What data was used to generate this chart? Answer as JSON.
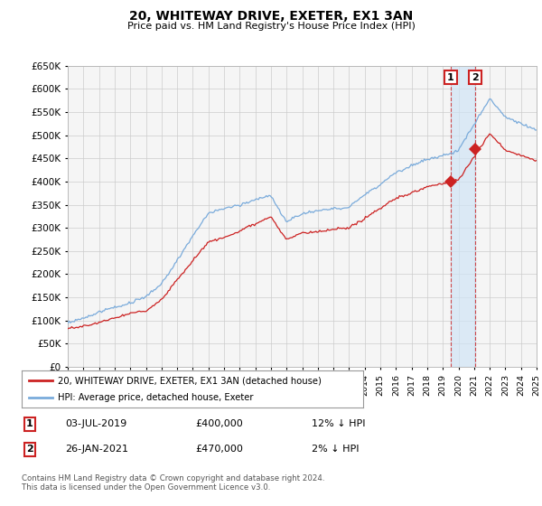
{
  "title": "20, WHITEWAY DRIVE, EXETER, EX1 3AN",
  "subtitle": "Price paid vs. HM Land Registry's House Price Index (HPI)",
  "ylabel_ticks": [
    "£0",
    "£50K",
    "£100K",
    "£150K",
    "£200K",
    "£250K",
    "£300K",
    "£350K",
    "£400K",
    "£450K",
    "£500K",
    "£550K",
    "£600K",
    "£650K"
  ],
  "ytick_values": [
    0,
    50000,
    100000,
    150000,
    200000,
    250000,
    300000,
    350000,
    400000,
    450000,
    500000,
    550000,
    600000,
    650000
  ],
  "xmin": 1995,
  "xmax": 2025,
  "ymin": 0,
  "ymax": 650000,
  "hpi_color": "#7aabdb",
  "price_color": "#cc2222",
  "grid_color": "#cccccc",
  "bg_color": "#f5f5f5",
  "sale1_date": 2019.5,
  "sale1_price": 400000,
  "sale2_date": 2021.07,
  "sale2_price": 470000,
  "shade_color": "#d0e4f5",
  "legend1_text": "20, WHITEWAY DRIVE, EXETER, EX1 3AN (detached house)",
  "legend2_text": "HPI: Average price, detached house, Exeter",
  "note1_date": "03-JUL-2019",
  "note1_price": "£400,000",
  "note1_hpi": "12% ↓ HPI",
  "note2_date": "26-JAN-2021",
  "note2_price": "£470,000",
  "note2_hpi": "2% ↓ HPI",
  "footer": "Contains HM Land Registry data © Crown copyright and database right 2024.\nThis data is licensed under the Open Government Licence v3.0."
}
